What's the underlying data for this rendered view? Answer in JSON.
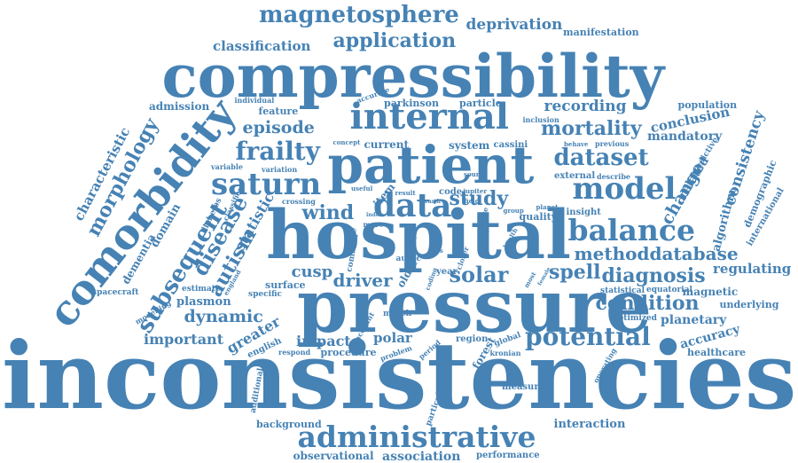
{
  "cloud": {
    "color": "#4682b4",
    "words": [
      {
        "text": "inconsistencies"
      },
      {
        "text": "compressibility"
      },
      {
        "text": "pressure"
      },
      {
        "text": "hospital"
      },
      {
        "text": "patient"
      },
      {
        "text": "internal"
      },
      {
        "text": "comorbidity"
      },
      {
        "text": "administrative"
      },
      {
        "text": "magnetosphere"
      },
      {
        "text": "application"
      },
      {
        "text": "classification"
      },
      {
        "text": "deprivation"
      },
      {
        "text": "manifestation"
      },
      {
        "text": "saturn"
      },
      {
        "text": "data"
      },
      {
        "text": "model"
      },
      {
        "text": "balance"
      },
      {
        "text": "potential"
      },
      {
        "text": "dataset"
      },
      {
        "text": "mortality"
      },
      {
        "text": "recording"
      },
      {
        "text": "frailty"
      },
      {
        "text": "episode"
      },
      {
        "text": "subsequent"
      },
      {
        "text": "morphology"
      },
      {
        "text": "characteristic"
      },
      {
        "text": "autism"
      },
      {
        "text": "disease"
      },
      {
        "text": "solar"
      },
      {
        "text": "spell"
      },
      {
        "text": "diagnosis"
      },
      {
        "text": "condition"
      },
      {
        "text": "methoddatabase"
      },
      {
        "text": "wind"
      },
      {
        "text": "study"
      },
      {
        "text": "consistency"
      },
      {
        "text": "change"
      },
      {
        "text": "related"
      },
      {
        "text": "algorithm"
      },
      {
        "text": "demographic"
      },
      {
        "text": "international"
      },
      {
        "text": "regulating"
      },
      {
        "text": "magnetic"
      },
      {
        "text": "underlying"
      },
      {
        "text": "planetary"
      },
      {
        "text": "accuracy"
      },
      {
        "text": "healthcare"
      },
      {
        "text": "driver"
      },
      {
        "text": "cusp"
      },
      {
        "text": "dynamic"
      },
      {
        "text": "important"
      },
      {
        "text": "greater"
      },
      {
        "text": "impact"
      },
      {
        "text": "polar"
      },
      {
        "text": "procedure"
      },
      {
        "text": "statistic"
      },
      {
        "text": "dementia"
      },
      {
        "text": "domain"
      },
      {
        "text": "plasmon"
      },
      {
        "text": "conclusion"
      },
      {
        "text": "mandatory"
      },
      {
        "text": "population"
      },
      {
        "text": "admission"
      },
      {
        "text": "feature"
      },
      {
        "text": "parkinson"
      },
      {
        "text": "particle"
      },
      {
        "text": "current"
      },
      {
        "text": "system"
      },
      {
        "text": "cassini"
      },
      {
        "text": "quality"
      },
      {
        "text": "insight"
      },
      {
        "text": "external"
      },
      {
        "text": "describe"
      },
      {
        "text": "item"
      },
      {
        "text": "equatorial"
      },
      {
        "text": "statistical"
      },
      {
        "text": "optimized"
      },
      {
        "text": "interaction"
      },
      {
        "text": "association"
      },
      {
        "text": "performance"
      },
      {
        "text": "observational"
      },
      {
        "text": "background"
      },
      {
        "text": "measure"
      },
      {
        "text": "forest"
      },
      {
        "text": "region"
      },
      {
        "text": "global"
      },
      {
        "text": "kronian"
      },
      {
        "text": "older"
      },
      {
        "text": "surface"
      },
      {
        "text": "specific"
      },
      {
        "text": "estimate"
      },
      {
        "text": "spacecraft"
      },
      {
        "text": "modelling"
      },
      {
        "text": "english"
      },
      {
        "text": "respond"
      },
      {
        "text": "additional"
      },
      {
        "text": "march"
      },
      {
        "text": "account"
      },
      {
        "text": "problem"
      },
      {
        "text": "period"
      },
      {
        "text": "particular"
      },
      {
        "text": "operating"
      },
      {
        "text": "accurate"
      },
      {
        "text": "individual"
      },
      {
        "text": "concept"
      },
      {
        "text": "variable"
      },
      {
        "text": "variation"
      },
      {
        "text": "useful"
      },
      {
        "text": "crossing"
      },
      {
        "text": "curve"
      },
      {
        "text": "common"
      },
      {
        "text": "more"
      },
      {
        "text": "index"
      },
      {
        "text": "year"
      },
      {
        "text": "code"
      },
      {
        "text": "result"
      },
      {
        "text": "jupiter"
      },
      {
        "text": "field"
      },
      {
        "text": "source"
      },
      {
        "text": "group"
      },
      {
        "text": "planet"
      },
      {
        "text": "behave"
      },
      {
        "text": "previous"
      },
      {
        "text": "inclusion"
      },
      {
        "text": "predictive"
      },
      {
        "text": "diabetes"
      },
      {
        "text": "classifier"
      },
      {
        "text": "england"
      },
      {
        "text": "auroc"
      },
      {
        "text": "hfrs"
      },
      {
        "text": "closer"
      },
      {
        "text": "coding"
      },
      {
        "text": "most"
      },
      {
        "text": "female"
      },
      {
        "text": "size"
      },
      {
        "text": "issue"
      },
      {
        "text": "health"
      },
      {
        "text": "earth"
      },
      {
        "text": "self"
      }
    ]
  }
}
